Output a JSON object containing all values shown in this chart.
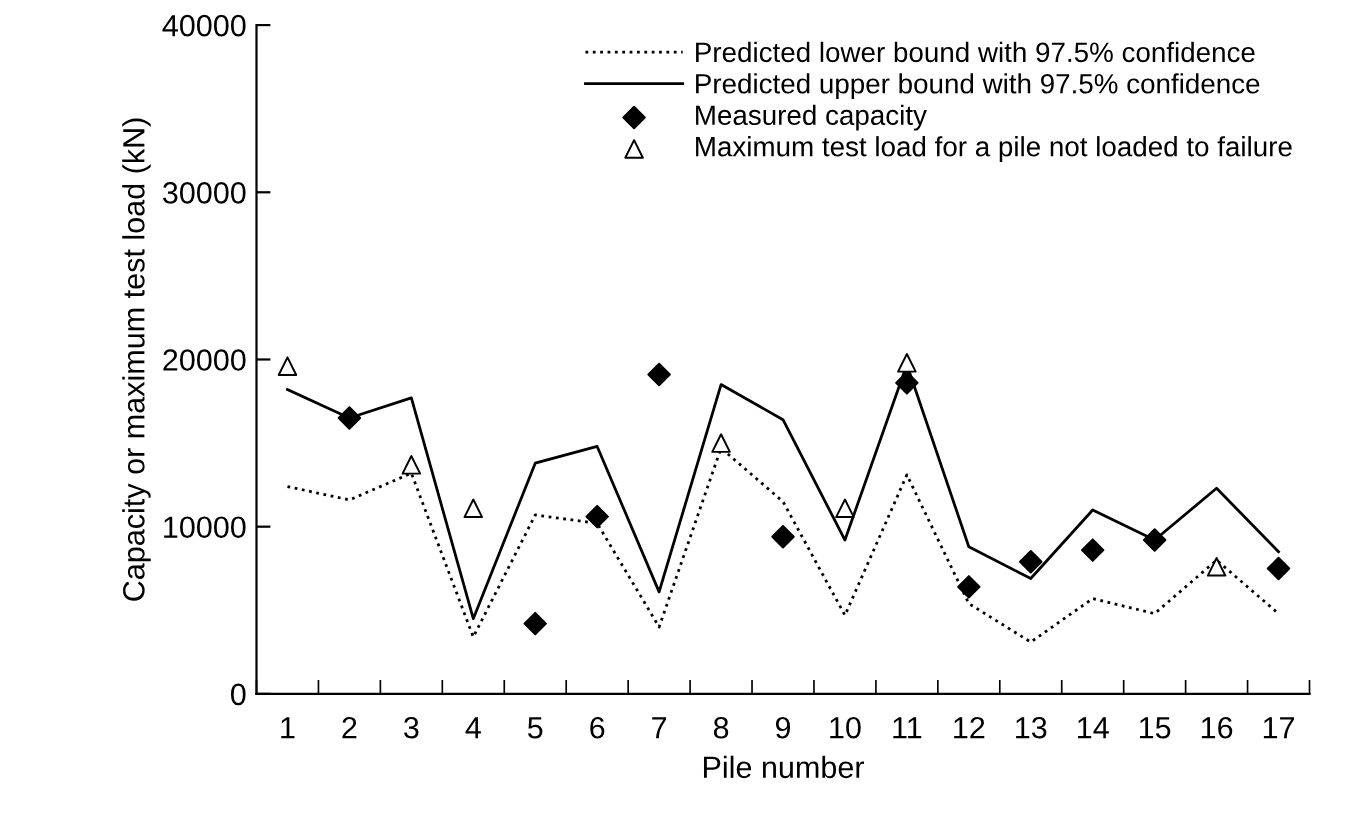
{
  "chart_data": {
    "type": "line",
    "xlabel": "Pile number",
    "ylabel": "Capacity or maximum test load (kN)",
    "categories": [
      "1",
      "2",
      "3",
      "4",
      "5",
      "6",
      "7",
      "8",
      "9",
      "10",
      "11",
      "12",
      "13",
      "14",
      "15",
      "16",
      "17"
    ],
    "ylim": [
      0,
      40000
    ],
    "yticks": [
      0,
      10000,
      20000,
      30000,
      40000
    ],
    "grid": false,
    "legend": "top right",
    "series": [
      {
        "name": "Predicted lower bound with 97.5% confidence",
        "line_style": "dotted",
        "marker": "none",
        "color": "#000000",
        "values": [
          12400,
          11600,
          13200,
          3400,
          10700,
          10200,
          4000,
          14700,
          11500,
          4700,
          13100,
          5400,
          3100,
          5700,
          4800,
          8000,
          4800
        ]
      },
      {
        "name": "Predicted upper bound with 97.5% confidence",
        "line_style": "solid",
        "marker": "none",
        "color": "#000000",
        "values": [
          18200,
          16500,
          17700,
          4500,
          13800,
          14800,
          6100,
          18500,
          16400,
          9200,
          19700,
          8800,
          6900,
          11000,
          9200,
          12300,
          8500
        ]
      },
      {
        "name": "Measured capacity",
        "type": "scatter",
        "marker": "diamond",
        "color": "#000000",
        "values": [
          null,
          16500,
          null,
          null,
          4200,
          10600,
          19100,
          null,
          9400,
          null,
          18600,
          6400,
          7900,
          8600,
          9200,
          null,
          7500
        ]
      },
      {
        "name": "Maximum test load for a pile not loaded to failure",
        "type": "scatter",
        "marker": "triangle",
        "color": "#ffffff",
        "values": [
          19600,
          null,
          13700,
          11100,
          null,
          null,
          null,
          15000,
          null,
          11100,
          19800,
          null,
          null,
          null,
          null,
          7600,
          null
        ]
      }
    ]
  }
}
